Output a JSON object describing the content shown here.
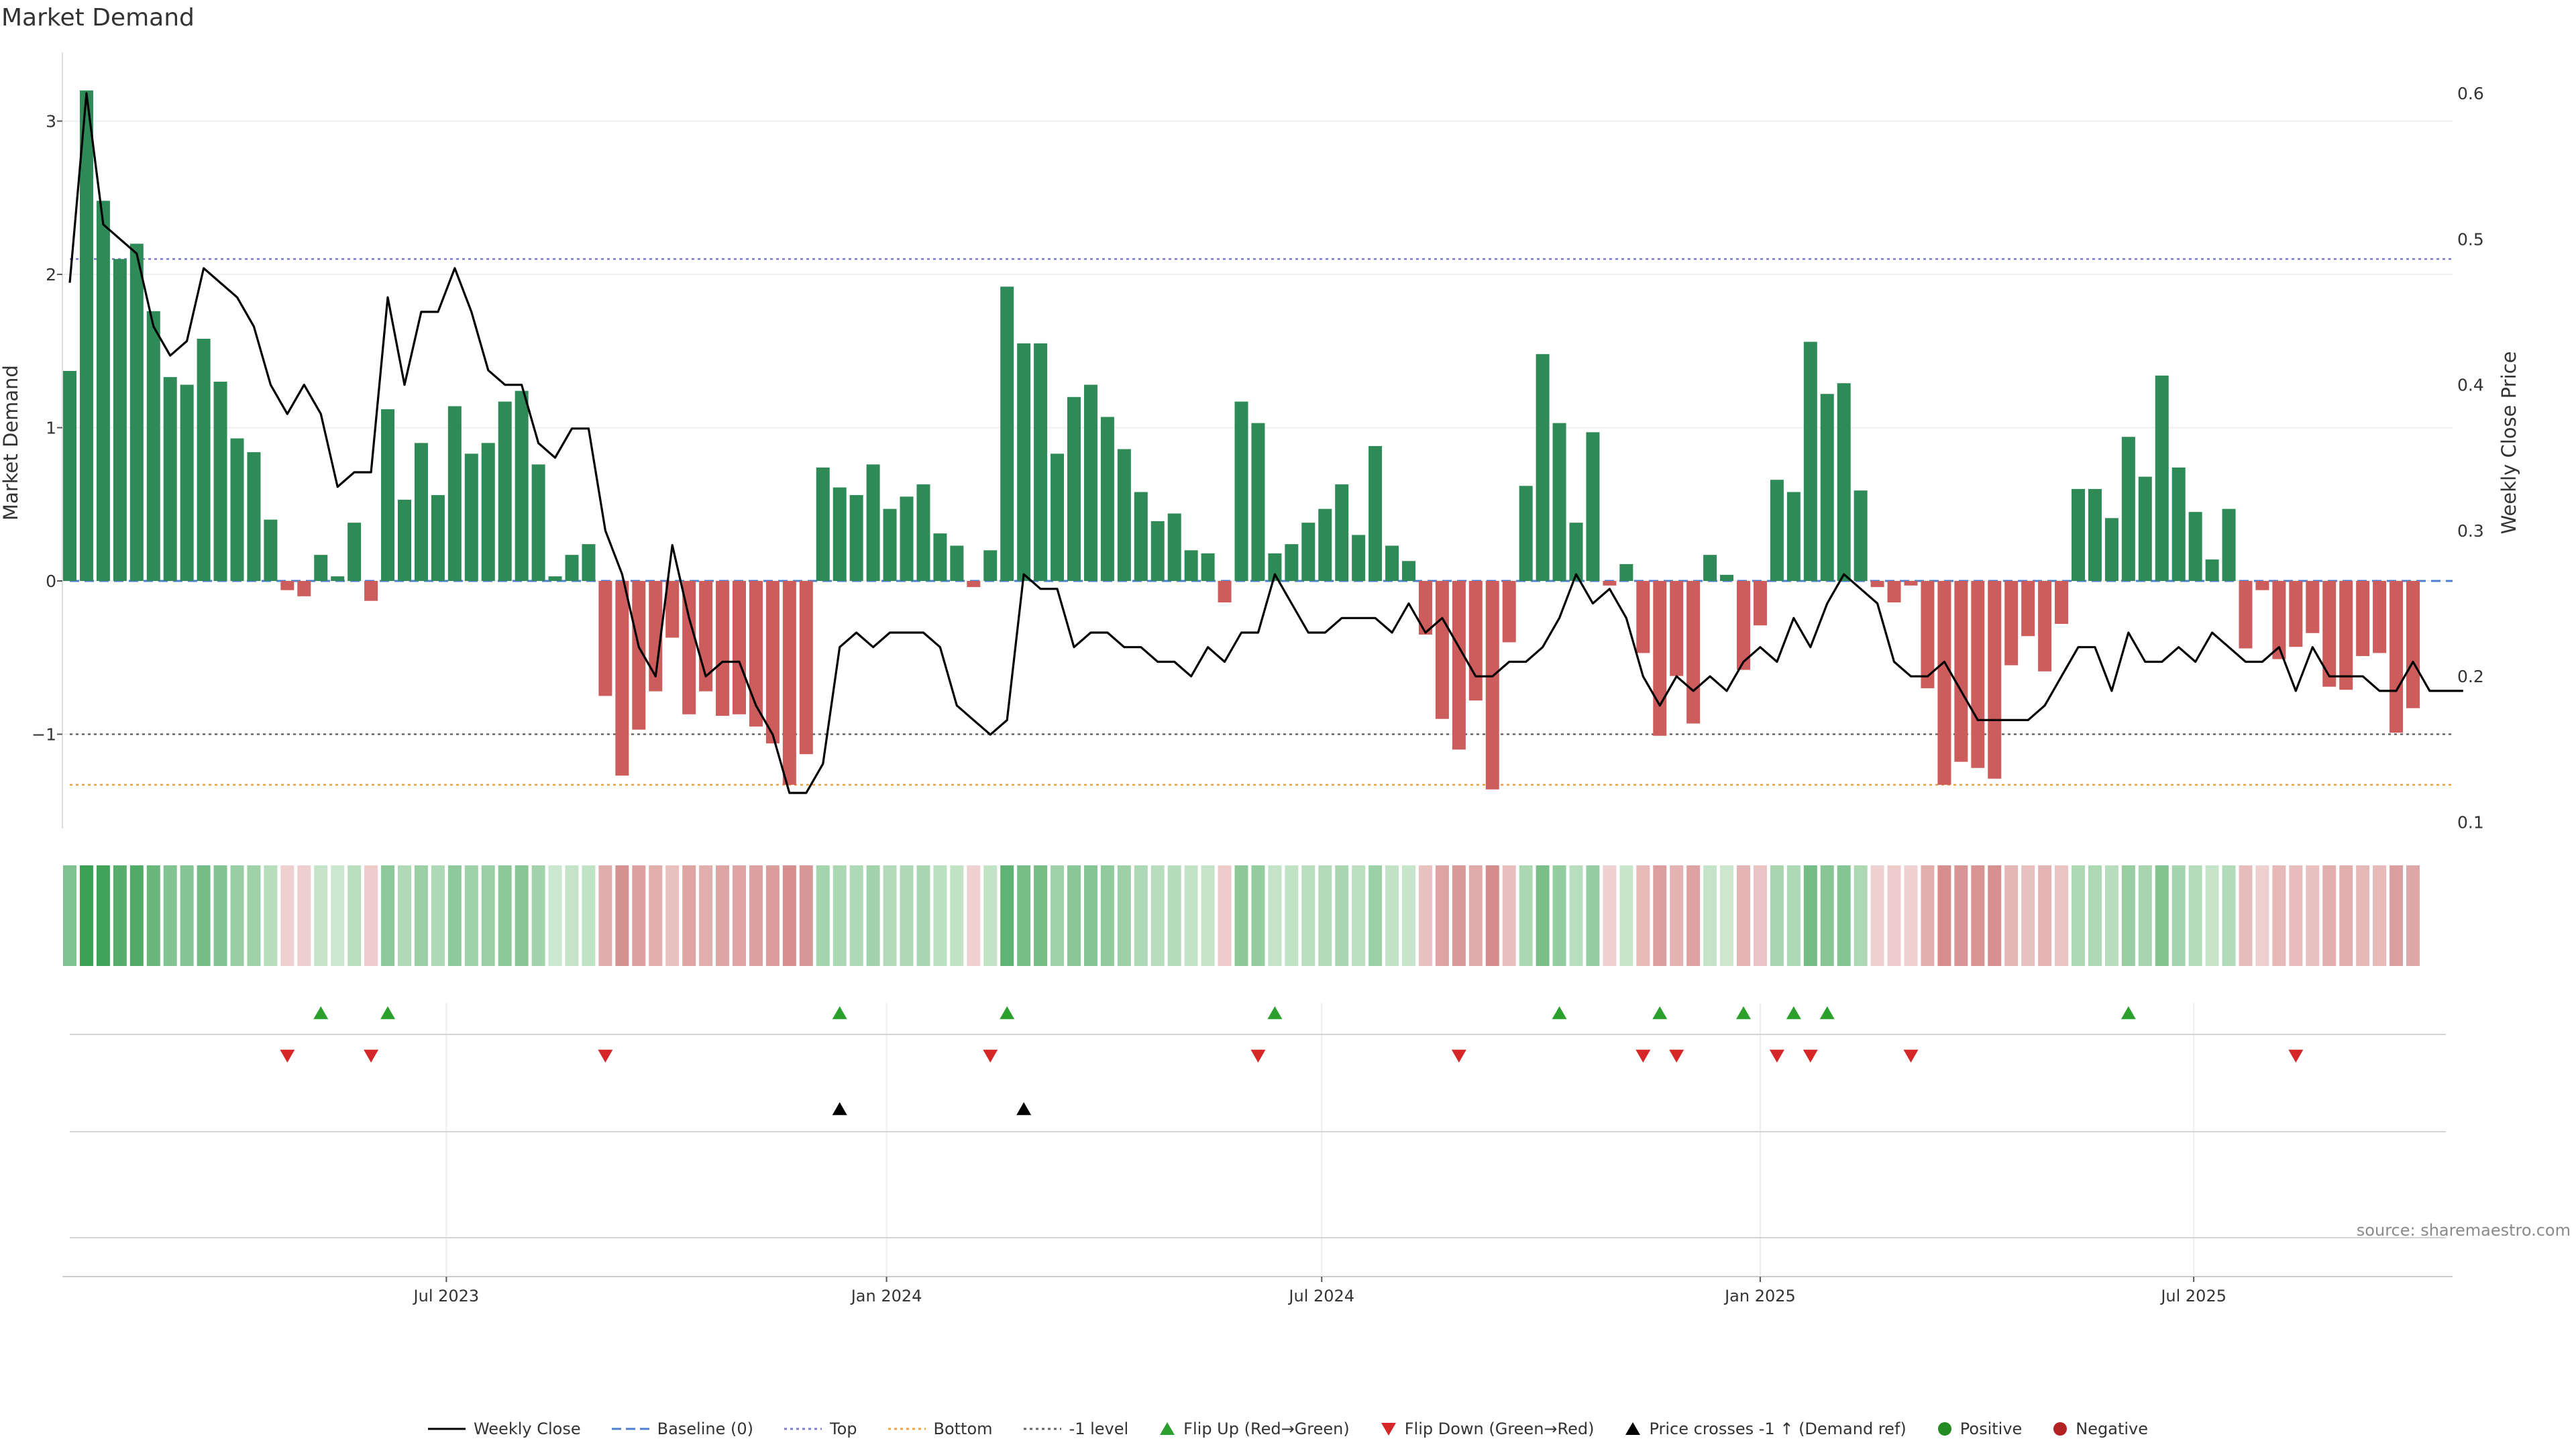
{
  "title": "Market Demand",
  "source": "source: sharemaestro.com",
  "colors": {
    "positive_bar": "#2e8b57",
    "negative_bar": "#cd5c5c",
    "price_line": "#000000",
    "baseline": "#4f7fcf",
    "top": "#7b7bd6",
    "bottom": "#f0a040",
    "minus_one": "#666666",
    "flip_up": "#2ca02c",
    "flip_down": "#d62728",
    "cross": "#000000",
    "legend_positive": "#228b22",
    "legend_negative": "#b22222"
  },
  "legend": [
    {
      "label": "Weekly Close",
      "kind": "line",
      "color": "#000000",
      "dash": "solid"
    },
    {
      "label": "Baseline (0)",
      "kind": "line",
      "color": "#4f7fcf",
      "dash": "dashed"
    },
    {
      "label": "Top",
      "kind": "line",
      "color": "#7b7bd6",
      "dash": "dotted"
    },
    {
      "label": "Bottom",
      "kind": "line",
      "color": "#f0a040",
      "dash": "dotted"
    },
    {
      "label": "-1 level",
      "kind": "line",
      "color": "#666666",
      "dash": "dotted"
    },
    {
      "label": "Flip Up (Red→Green)",
      "kind": "up",
      "color": "#2ca02c"
    },
    {
      "label": "Flip Down (Green→Red)",
      "kind": "down",
      "color": "#d62728"
    },
    {
      "label": "Price crosses -1 ↑ (Demand ref)",
      "kind": "up",
      "color": "#000000"
    },
    {
      "label": "Positive",
      "kind": "dot",
      "color": "#228b22"
    },
    {
      "label": "Negative",
      "kind": "dot",
      "color": "#b22222"
    }
  ],
  "chart_data": {
    "type": "bar",
    "title": "Market Demand",
    "ylabel": "Market Demand",
    "y2label": "Weekly Close Price",
    "ylim": [
      -1.6,
      3.5
    ],
    "y2lim": [
      0.1,
      0.635
    ],
    "yticks": [
      -1,
      0,
      1,
      2,
      3
    ],
    "y2ticks": [
      0.1,
      0.2,
      0.3,
      0.4,
      0.5,
      0.6
    ],
    "ytick_labels": [
      "−1",
      "0",
      "1",
      "2",
      "3"
    ],
    "y2tick_labels": [
      "0.1",
      "0.2",
      "0.3",
      "0.4",
      "0.5",
      "0.6"
    ],
    "x_ticks": [
      {
        "label": "Jul 2023",
        "week": 22.5
      },
      {
        "label": "Jan 2024",
        "week": 48.8
      },
      {
        "label": "Jul 2024",
        "week": 74.8
      },
      {
        "label": "Jan 2025",
        "week": 101.0
      },
      {
        "label": "Jul 2025",
        "week": 126.9
      }
    ],
    "levels": {
      "baseline": 0,
      "top": 2.1,
      "bottom": -1.33,
      "minus_one": -1
    },
    "demand": [
      1.37,
      3.2,
      2.48,
      2.1,
      2.2,
      1.76,
      1.33,
      1.28,
      1.58,
      1.3,
      0.93,
      0.84,
      0.4,
      -0.06,
      -0.1,
      0.17,
      0.03,
      0.38,
      -0.13,
      1.12,
      0.53,
      0.9,
      0.56,
      1.14,
      0.83,
      0.9,
      1.17,
      1.24,
      0.76,
      0.03,
      0.17,
      0.24,
      -0.75,
      -1.27,
      -0.97,
      -0.72,
      -0.37,
      -0.87,
      -0.72,
      -0.88,
      -0.87,
      -0.95,
      -1.06,
      -1.33,
      -1.13,
      0.74,
      0.61,
      0.56,
      0.76,
      0.47,
      0.55,
      0.63,
      0.31,
      0.23,
      -0.04,
      0.2,
      1.92,
      1.55,
      1.55,
      0.83,
      1.2,
      1.28,
      1.07,
      0.86,
      0.58,
      0.39,
      0.44,
      0.2,
      0.18,
      -0.14,
      1.17,
      1.03,
      0.18,
      0.24,
      0.38,
      0.47,
      0.63,
      0.3,
      0.88,
      0.23,
      0.13,
      -0.35,
      -0.9,
      -1.1,
      -0.78,
      -1.36,
      -0.4,
      0.62,
      1.48,
      1.03,
      0.38,
      0.97,
      -0.03,
      0.11,
      -0.47,
      -1.01,
      -0.62,
      -0.93,
      0.17,
      0.04,
      -0.58,
      -0.29,
      0.66,
      0.58,
      1.56,
      1.22,
      1.29,
      0.59,
      -0.04,
      -0.14,
      -0.03,
      -0.7,
      -1.33,
      -1.18,
      -1.22,
      -1.29,
      -0.55,
      -0.36,
      -0.59,
      -0.28,
      0.6,
      0.6,
      0.41,
      0.94,
      0.68,
      1.34,
      0.74,
      0.45,
      0.14,
      0.47,
      -0.44,
      -0.06,
      -0.51,
      -0.43,
      -0.34,
      -0.69,
      -0.71,
      -0.49,
      -0.47,
      -0.99,
      -0.83
    ],
    "weekly_close": [
      0.47,
      0.6,
      0.51,
      0.5,
      0.49,
      0.44,
      0.42,
      0.43,
      0.48,
      0.47,
      0.46,
      0.44,
      0.4,
      0.38,
      0.4,
      0.38,
      0.33,
      0.34,
      0.34,
      0.46,
      0.4,
      0.45,
      0.45,
      0.48,
      0.45,
      0.41,
      0.4,
      0.4,
      0.36,
      0.35,
      0.37,
      0.37,
      0.3,
      0.27,
      0.22,
      0.2,
      0.29,
      0.24,
      0.2,
      0.21,
      0.21,
      0.18,
      0.16,
      0.12,
      0.12,
      0.14,
      0.22,
      0.23,
      0.22,
      0.23,
      0.23,
      0.23,
      0.22,
      0.18,
      0.17,
      0.16,
      0.17,
      0.27,
      0.26,
      0.26,
      0.22,
      0.23,
      0.23,
      0.22,
      0.22,
      0.21,
      0.21,
      0.2,
      0.22,
      0.21,
      0.23,
      0.23,
      0.27,
      0.25,
      0.23,
      0.23,
      0.24,
      0.24,
      0.24,
      0.23,
      0.25,
      0.23,
      0.24,
      0.22,
      0.2,
      0.2,
      0.21,
      0.21,
      0.22,
      0.24,
      0.27,
      0.25,
      0.26,
      0.24,
      0.2,
      0.18,
      0.2,
      0.19,
      0.2,
      0.19,
      0.21,
      0.22,
      0.21,
      0.24,
      0.22,
      0.25,
      0.27,
      0.26,
      0.25,
      0.21,
      0.2,
      0.2,
      0.21,
      0.19,
      0.17,
      0.17,
      0.17,
      0.17,
      0.18,
      0.2,
      0.22,
      0.22,
      0.19,
      0.23,
      0.21,
      0.21,
      0.22,
      0.21,
      0.23,
      0.22,
      0.21,
      0.21,
      0.22,
      0.19,
      0.22,
      0.2,
      0.2,
      0.2,
      0.19,
      0.19,
      0.21,
      0.19,
      0.19,
      0.19
    ],
    "flip_up_weeks": [
      15,
      19,
      46,
      56,
      72,
      89,
      95,
      100,
      103,
      105,
      123
    ],
    "flip_down_weeks": [
      13,
      18,
      32,
      55,
      71,
      83,
      94,
      96,
      102,
      104,
      110,
      133
    ],
    "price_cross_weeks": [
      46,
      57
    ]
  }
}
